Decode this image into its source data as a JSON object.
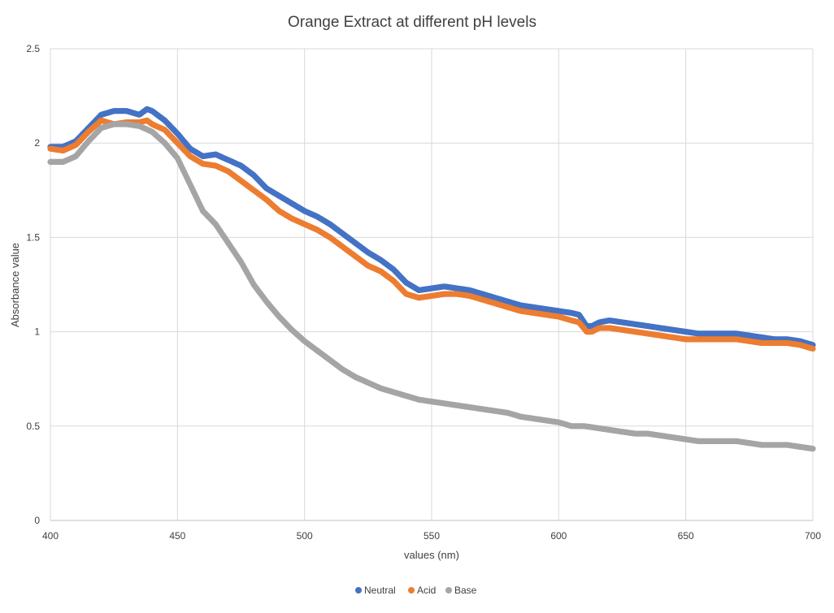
{
  "chart_data": {
    "type": "scatter",
    "title": "Orange Extract at different pH levels",
    "xlabel": "values (nm)",
    "ylabel": "Absorbance value",
    "xlim": [
      400,
      700
    ],
    "ylim": [
      0,
      2.5
    ],
    "x_ticks": [
      "400",
      "450",
      "500",
      "550",
      "600",
      "650",
      "700"
    ],
    "y_ticks": [
      "0",
      "0.5",
      "1",
      "1.5",
      "2",
      "2.5"
    ],
    "grid": true,
    "legend_position": "bottom",
    "series": [
      {
        "name": "Neutral",
        "color": "#4472C4",
        "points": [
          [
            400,
            1.98
          ],
          [
            405,
            1.98
          ],
          [
            410,
            2.01
          ],
          [
            415,
            2.08
          ],
          [
            420,
            2.15
          ],
          [
            425,
            2.17
          ],
          [
            430,
            2.17
          ],
          [
            435,
            2.15
          ],
          [
            438,
            2.18
          ],
          [
            440,
            2.17
          ],
          [
            445,
            2.12
          ],
          [
            450,
            2.05
          ],
          [
            455,
            1.97
          ],
          [
            460,
            1.93
          ],
          [
            465,
            1.94
          ],
          [
            470,
            1.91
          ],
          [
            475,
            1.88
          ],
          [
            480,
            1.83
          ],
          [
            485,
            1.76
          ],
          [
            490,
            1.72
          ],
          [
            495,
            1.68
          ],
          [
            500,
            1.64
          ],
          [
            505,
            1.61
          ],
          [
            510,
            1.57
          ],
          [
            515,
            1.52
          ],
          [
            520,
            1.47
          ],
          [
            525,
            1.42
          ],
          [
            530,
            1.38
          ],
          [
            535,
            1.33
          ],
          [
            540,
            1.26
          ],
          [
            545,
            1.22
          ],
          [
            550,
            1.23
          ],
          [
            555,
            1.24
          ],
          [
            560,
            1.23
          ],
          [
            565,
            1.22
          ],
          [
            570,
            1.2
          ],
          [
            575,
            1.18
          ],
          [
            580,
            1.16
          ],
          [
            585,
            1.14
          ],
          [
            590,
            1.13
          ],
          [
            595,
            1.12
          ],
          [
            600,
            1.11
          ],
          [
            605,
            1.1
          ],
          [
            608,
            1.09
          ],
          [
            611,
            1.03
          ],
          [
            613,
            1.03
          ],
          [
            616,
            1.05
          ],
          [
            620,
            1.06
          ],
          [
            625,
            1.05
          ],
          [
            630,
            1.04
          ],
          [
            635,
            1.03
          ],
          [
            640,
            1.02
          ],
          [
            645,
            1.01
          ],
          [
            650,
            1.0
          ],
          [
            655,
            0.99
          ],
          [
            660,
            0.99
          ],
          [
            665,
            0.99
          ],
          [
            670,
            0.99
          ],
          [
            675,
            0.98
          ],
          [
            680,
            0.97
          ],
          [
            685,
            0.96
          ],
          [
            690,
            0.96
          ],
          [
            695,
            0.95
          ],
          [
            700,
            0.93
          ]
        ]
      },
      {
        "name": "Acid",
        "color": "#ED7D31",
        "points": [
          [
            400,
            1.97
          ],
          [
            405,
            1.96
          ],
          [
            410,
            1.99
          ],
          [
            415,
            2.06
          ],
          [
            420,
            2.12
          ],
          [
            425,
            2.1
          ],
          [
            430,
            2.11
          ],
          [
            435,
            2.11
          ],
          [
            438,
            2.12
          ],
          [
            440,
            2.1
          ],
          [
            445,
            2.07
          ],
          [
            450,
            2.0
          ],
          [
            455,
            1.93
          ],
          [
            460,
            1.89
          ],
          [
            465,
            1.88
          ],
          [
            470,
            1.85
          ],
          [
            475,
            1.8
          ],
          [
            480,
            1.75
          ],
          [
            485,
            1.7
          ],
          [
            490,
            1.64
          ],
          [
            495,
            1.6
          ],
          [
            500,
            1.57
          ],
          [
            505,
            1.54
          ],
          [
            510,
            1.5
          ],
          [
            515,
            1.45
          ],
          [
            520,
            1.4
          ],
          [
            525,
            1.35
          ],
          [
            530,
            1.32
          ],
          [
            535,
            1.27
          ],
          [
            540,
            1.2
          ],
          [
            545,
            1.18
          ],
          [
            550,
            1.19
          ],
          [
            555,
            1.2
          ],
          [
            560,
            1.2
          ],
          [
            565,
            1.19
          ],
          [
            570,
            1.17
          ],
          [
            575,
            1.15
          ],
          [
            580,
            1.13
          ],
          [
            585,
            1.11
          ],
          [
            590,
            1.1
          ],
          [
            595,
            1.09
          ],
          [
            600,
            1.08
          ],
          [
            605,
            1.06
          ],
          [
            608,
            1.05
          ],
          [
            611,
            1.0
          ],
          [
            613,
            1.0
          ],
          [
            616,
            1.02
          ],
          [
            620,
            1.02
          ],
          [
            625,
            1.01
          ],
          [
            630,
            1.0
          ],
          [
            635,
            0.99
          ],
          [
            640,
            0.98
          ],
          [
            645,
            0.97
          ],
          [
            650,
            0.96
          ],
          [
            655,
            0.96
          ],
          [
            660,
            0.96
          ],
          [
            665,
            0.96
          ],
          [
            670,
            0.96
          ],
          [
            675,
            0.95
          ],
          [
            680,
            0.94
          ],
          [
            685,
            0.94
          ],
          [
            690,
            0.94
          ],
          [
            695,
            0.93
          ],
          [
            700,
            0.91
          ]
        ]
      },
      {
        "name": "Base",
        "color": "#A5A5A5",
        "points": [
          [
            400,
            1.9
          ],
          [
            405,
            1.9
          ],
          [
            410,
            1.93
          ],
          [
            415,
            2.01
          ],
          [
            420,
            2.08
          ],
          [
            425,
            2.1
          ],
          [
            430,
            2.1
          ],
          [
            435,
            2.09
          ],
          [
            440,
            2.06
          ],
          [
            445,
            2.0
          ],
          [
            450,
            1.92
          ],
          [
            455,
            1.78
          ],
          [
            460,
            1.64
          ],
          [
            465,
            1.57
          ],
          [
            470,
            1.47
          ],
          [
            475,
            1.37
          ],
          [
            480,
            1.25
          ],
          [
            485,
            1.16
          ],
          [
            490,
            1.08
          ],
          [
            495,
            1.01
          ],
          [
            500,
            0.95
          ],
          [
            505,
            0.9
          ],
          [
            510,
            0.85
          ],
          [
            515,
            0.8
          ],
          [
            520,
            0.76
          ],
          [
            525,
            0.73
          ],
          [
            530,
            0.7
          ],
          [
            535,
            0.68
          ],
          [
            540,
            0.66
          ],
          [
            545,
            0.64
          ],
          [
            550,
            0.63
          ],
          [
            555,
            0.62
          ],
          [
            560,
            0.61
          ],
          [
            565,
            0.6
          ],
          [
            570,
            0.59
          ],
          [
            575,
            0.58
          ],
          [
            580,
            0.57
          ],
          [
            585,
            0.55
          ],
          [
            590,
            0.54
          ],
          [
            595,
            0.53
          ],
          [
            600,
            0.52
          ],
          [
            605,
            0.5
          ],
          [
            610,
            0.5
          ],
          [
            615,
            0.49
          ],
          [
            620,
            0.48
          ],
          [
            625,
            0.47
          ],
          [
            630,
            0.46
          ],
          [
            635,
            0.46
          ],
          [
            640,
            0.45
          ],
          [
            645,
            0.44
          ],
          [
            650,
            0.43
          ],
          [
            655,
            0.42
          ],
          [
            660,
            0.42
          ],
          [
            665,
            0.42
          ],
          [
            670,
            0.42
          ],
          [
            675,
            0.41
          ],
          [
            680,
            0.4
          ],
          [
            685,
            0.4
          ],
          [
            690,
            0.4
          ],
          [
            695,
            0.39
          ],
          [
            700,
            0.38
          ]
        ]
      }
    ]
  }
}
